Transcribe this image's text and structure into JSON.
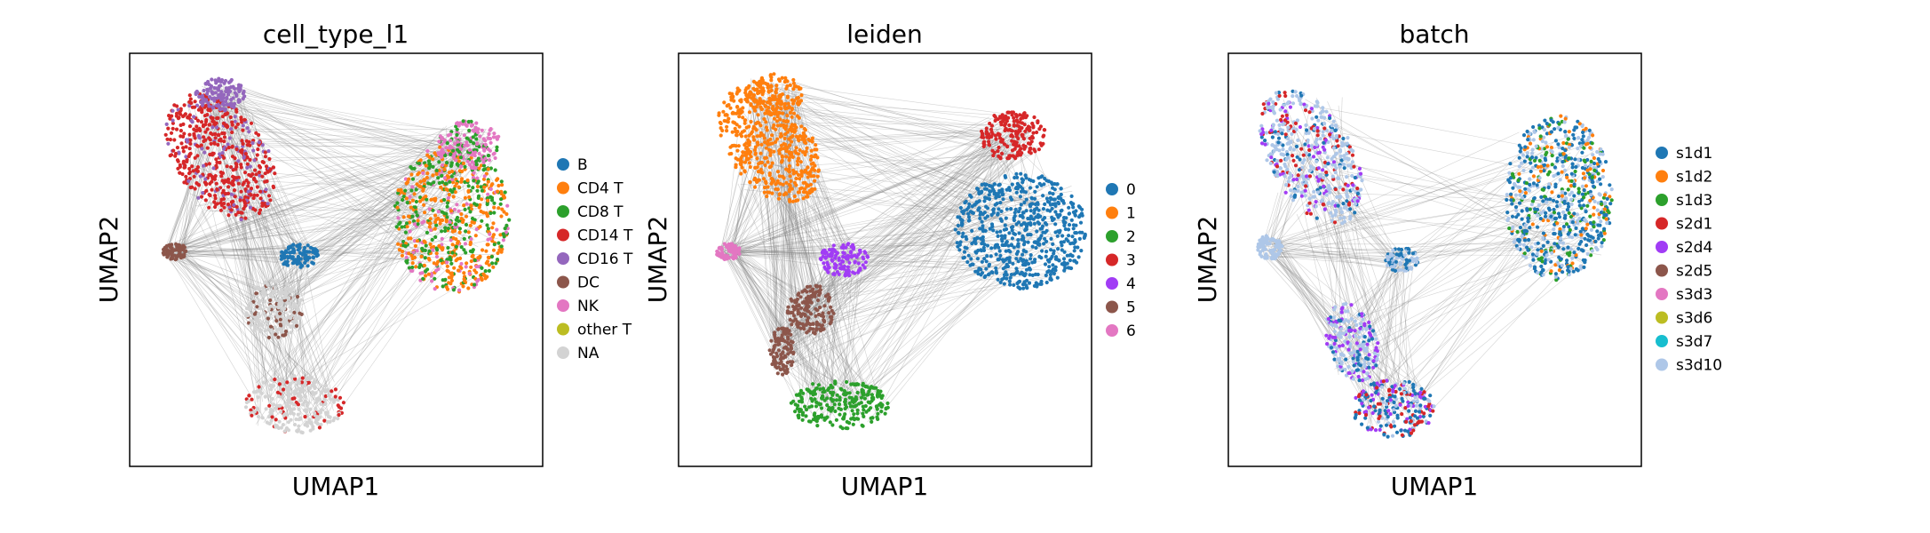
{
  "chart_data": [
    {
      "type": "scatter",
      "title": "cell_type_l1",
      "xlabel": "UMAP1",
      "ylabel": "UMAP2",
      "grid": false,
      "legend_position": "right",
      "show_ticks": false,
      "overlay": "gray PAGA-style edges connecting clusters",
      "legend": [
        {
          "label": "B",
          "color": "#1f77b4"
        },
        {
          "label": "CD4 T",
          "color": "#ff7f0e"
        },
        {
          "label": "CD8 T",
          "color": "#2ca02c"
        },
        {
          "label": "CD14 T",
          "color": "#d62728"
        },
        {
          "label": "CD16 T",
          "color": "#9467bd"
        },
        {
          "label": "DC",
          "color": "#8c564b"
        },
        {
          "label": "NK",
          "color": "#e377c2"
        },
        {
          "label": "other T",
          "color": "#bcbd22"
        },
        {
          "label": "NA",
          "color": "#d3d3d3"
        }
      ]
    },
    {
      "type": "scatter",
      "title": "leiden",
      "xlabel": "UMAP1",
      "ylabel": "UMAP2",
      "grid": false,
      "legend_position": "right",
      "show_ticks": false,
      "overlay": "gray PAGA-style edges connecting clusters",
      "legend": [
        {
          "label": "0",
          "color": "#1f77b4"
        },
        {
          "label": "1",
          "color": "#ff7f0e"
        },
        {
          "label": "2",
          "color": "#2ca02c"
        },
        {
          "label": "3",
          "color": "#d62728"
        },
        {
          "label": "4",
          "color": "#a13cf5"
        },
        {
          "label": "5",
          "color": "#8c564b"
        },
        {
          "label": "6",
          "color": "#e377c2"
        }
      ]
    },
    {
      "type": "scatter",
      "title": "batch",
      "xlabel": "UMAP1",
      "ylabel": "UMAP2",
      "grid": false,
      "legend_position": "right",
      "show_ticks": false,
      "overlay": "gray PAGA-style edges connecting clusters",
      "legend": [
        {
          "label": "s1d1",
          "color": "#1f77b4"
        },
        {
          "label": "s1d2",
          "color": "#ff7f0e"
        },
        {
          "label": "s1d3",
          "color": "#2ca02c"
        },
        {
          "label": "s2d1",
          "color": "#d62728"
        },
        {
          "label": "s2d4",
          "color": "#a13cf5"
        },
        {
          "label": "s2d5",
          "color": "#8c564b"
        },
        {
          "label": "s3d3",
          "color": "#e377c2"
        },
        {
          "label": "s3d6",
          "color": "#bcbd22"
        },
        {
          "label": "s3d7",
          "color": "#17becf"
        },
        {
          "label": "s3d10",
          "color": "#aec7e8"
        }
      ]
    }
  ]
}
